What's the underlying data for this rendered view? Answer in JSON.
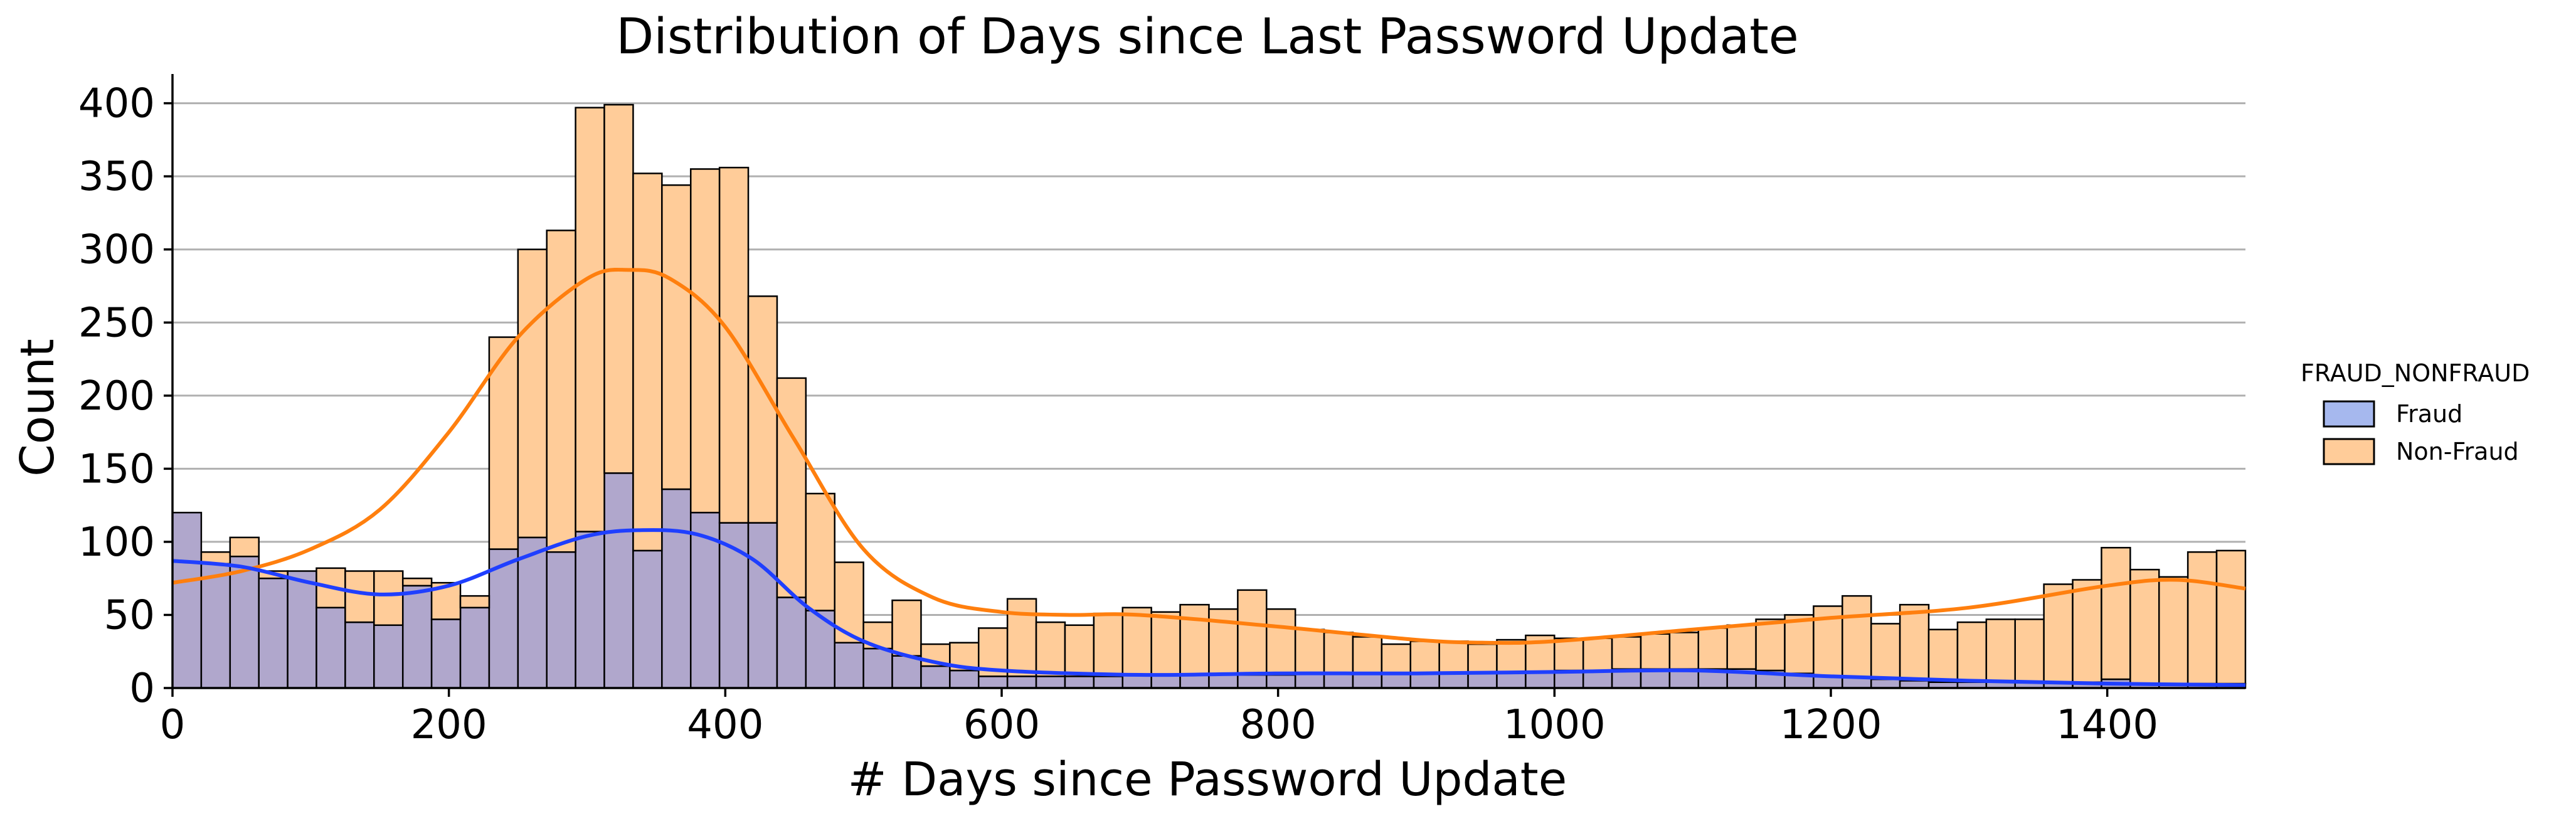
{
  "chart_data": {
    "type": "bar",
    "title": "Distribution of Days since Last Password Update",
    "xlabel": "# Days since Password Update",
    "ylabel": "Count",
    "xlim": [
      0,
      1500
    ],
    "ylim": [
      0,
      420
    ],
    "xticks": [
      0,
      200,
      400,
      600,
      800,
      1000,
      1200,
      1400
    ],
    "yticks": [
      0,
      50,
      100,
      150,
      200,
      250,
      300,
      350,
      400
    ],
    "grid": "horizontal",
    "legend_position": "right",
    "legend_title": "FRAUD_NONFRAUD",
    "bin_width": 20.833,
    "series": [
      {
        "name": "Fraud",
        "color": "#1f3fff",
        "fill": "#a6b8ee",
        "values": [
          120,
          85,
          90,
          75,
          80,
          55,
          45,
          43,
          70,
          47,
          55,
          95,
          103,
          93,
          107,
          147,
          94,
          136,
          120,
          113,
          113,
          62,
          53,
          31,
          27,
          22,
          15,
          12,
          8,
          8,
          8,
          8,
          8,
          9,
          9,
          9,
          9,
          9,
          9,
          10,
          10,
          10,
          10,
          10,
          10,
          10,
          11,
          11,
          12,
          12,
          13,
          13,
          13,
          13,
          13,
          12,
          10,
          8,
          7,
          6,
          5,
          4,
          4,
          4,
          4,
          4,
          4,
          6,
          3,
          3,
          3,
          3
        ]
      },
      {
        "name": "Non-Fraud",
        "color": "#ff7f0e",
        "fill": "#ffcc99",
        "values": [
          0,
          8,
          13,
          5,
          0,
          27,
          35,
          37,
          5,
          25,
          8,
          145,
          197,
          220,
          290,
          252,
          258,
          208,
          235,
          243,
          155,
          150,
          80,
          55,
          18,
          38,
          15,
          19,
          33,
          53,
          37,
          35,
          43,
          46,
          43,
          48,
          45,
          58,
          45,
          30,
          28,
          25,
          20,
          22,
          22,
          20,
          22,
          25,
          22,
          22,
          22,
          24,
          25,
          28,
          30,
          35,
          40,
          48,
          56,
          38,
          52,
          36,
          41,
          43,
          43,
          67,
          70,
          90,
          78,
          73,
          90,
          91
        ]
      },
      {
        "name": "Fraud KDE",
        "color": "#1f3fff",
        "x": [
          0,
          50,
          100,
          150,
          200,
          250,
          300,
          340,
          380,
          420,
          460,
          500,
          550,
          600,
          700,
          800,
          900,
          1000,
          1100,
          1200,
          1300,
          1400,
          1500
        ],
        "values": [
          87,
          83,
          72,
          64,
          70,
          88,
          104,
          108,
          105,
          88,
          55,
          32,
          18,
          12,
          9,
          10,
          10,
          11,
          12,
          8,
          5,
          3,
          2
        ]
      },
      {
        "name": "Non-Fraud KDE",
        "color": "#ff7f0e",
        "x": [
          0,
          50,
          100,
          150,
          200,
          250,
          300,
          330,
          360,
          400,
          450,
          500,
          550,
          600,
          650,
          700,
          800,
          900,
          950,
          1000,
          1100,
          1200,
          1300,
          1400,
          1450,
          1500
        ],
        "values": [
          72,
          80,
          95,
          122,
          175,
          240,
          280,
          286,
          280,
          247,
          170,
          95,
          62,
          52,
          50,
          50,
          42,
          33,
          31,
          32,
          40,
          48,
          55,
          70,
          74,
          68
        ]
      }
    ]
  }
}
